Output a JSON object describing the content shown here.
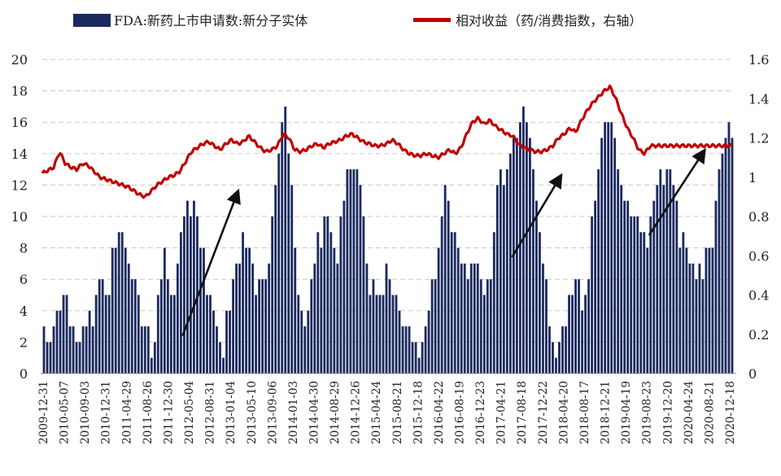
{
  "chart_data": {
    "type": "bar+line",
    "legend": {
      "bar_label": "FDA:新药上市申请数:新分子实体",
      "line_label": "相对收益（药/消费指数，右轴）",
      "placement": "top"
    },
    "y_left": {
      "min": 0,
      "max": 20,
      "ticks": [
        "0",
        "2",
        "4",
        "6",
        "8",
        "10",
        "12",
        "14",
        "16",
        "18",
        "20"
      ]
    },
    "y_right": {
      "min": 0,
      "max": 1.6,
      "ticks": [
        "0",
        "0.2",
        "0.4",
        "0.6",
        "0.8",
        "1",
        "1.2",
        "1.4",
        "1.6"
      ]
    },
    "x_tick_labels": [
      "2009-12-31",
      "2010-05-07",
      "2010-09-03",
      "2010-12-31",
      "2011-04-29",
      "2011-08-26",
      "2011-12-30",
      "2012-05-04",
      "2012-08-31",
      "2013-01-04",
      "2013-05-10",
      "2013-09-06",
      "2014-01-03",
      "2014-04-30",
      "2014-08-29",
      "2014-12-26",
      "2015-04-24",
      "2015-08-21",
      "2015-12-18",
      "2016-04-22",
      "2016-08-19",
      "2016-12-23",
      "2017-04-21",
      "2017-08-18",
      "2017-12-22",
      "2018-04-20",
      "2018-08-17",
      "2018-12-21",
      "2019-04-19",
      "2019-08-23",
      "2019-12-20",
      "2020-04-24",
      "2020-08-21",
      "2020-12-18"
    ],
    "bar_anchors": [
      [
        0,
        2
      ],
      [
        1,
        2
      ],
      [
        2,
        3
      ],
      [
        3,
        5
      ],
      [
        4,
        4
      ],
      [
        5,
        3
      ],
      [
        6,
        2
      ],
      [
        7,
        3
      ],
      [
        8,
        3
      ],
      [
        9,
        5
      ],
      [
        10,
        6
      ],
      [
        11,
        5
      ],
      [
        12,
        7
      ],
      [
        13,
        9
      ],
      [
        14,
        9
      ],
      [
        15,
        7
      ],
      [
        16,
        5
      ],
      [
        17,
        4
      ],
      [
        18,
        3
      ],
      [
        19,
        1
      ],
      [
        20,
        5
      ],
      [
        21,
        8
      ],
      [
        22,
        5
      ],
      [
        23,
        6
      ],
      [
        24,
        9
      ],
      [
        25,
        11
      ],
      [
        26,
        11
      ],
      [
        27,
        9
      ],
      [
        28,
        7
      ],
      [
        29,
        5
      ],
      [
        30,
        3
      ],
      [
        31,
        2
      ],
      [
        32,
        3
      ],
      [
        33,
        6
      ],
      [
        34,
        8
      ],
      [
        35,
        9
      ],
      [
        36,
        7
      ],
      [
        37,
        6
      ],
      [
        38,
        6
      ],
      [
        39,
        6
      ],
      [
        40,
        10
      ],
      [
        41,
        14
      ],
      [
        42,
        17
      ],
      [
        43,
        14
      ],
      [
        44,
        6
      ],
      [
        45,
        4
      ],
      [
        46,
        4
      ],
      [
        47,
        7
      ],
      [
        48,
        8
      ],
      [
        49,
        10
      ],
      [
        50,
        9
      ],
      [
        51,
        7
      ],
      [
        52,
        10
      ],
      [
        53,
        13
      ],
      [
        54,
        14
      ],
      [
        55,
        13
      ],
      [
        56,
        8
      ],
      [
        57,
        6
      ],
      [
        58,
        5
      ],
      [
        59,
        5
      ],
      [
        60,
        6
      ],
      [
        61,
        5
      ],
      [
        62,
        4
      ],
      [
        63,
        3
      ],
      [
        64,
        2
      ],
      [
        65,
        2
      ],
      [
        66,
        2
      ],
      [
        67,
        4
      ],
      [
        68,
        6
      ],
      [
        69,
        9
      ],
      [
        70,
        12
      ],
      [
        71,
        10
      ],
      [
        72,
        8
      ],
      [
        73,
        7
      ],
      [
        74,
        7
      ],
      [
        75,
        7
      ],
      [
        76,
        6
      ],
      [
        77,
        6
      ],
      [
        78,
        6
      ],
      [
        79,
        12
      ],
      [
        80,
        12
      ],
      [
        81,
        13
      ],
      [
        82,
        15
      ],
      [
        83,
        16
      ],
      [
        84,
        16
      ],
      [
        85,
        15
      ],
      [
        86,
        11
      ],
      [
        87,
        7
      ],
      [
        88,
        4
      ],
      [
        89,
        1
      ],
      [
        90,
        2
      ],
      [
        91,
        4
      ],
      [
        92,
        5
      ],
      [
        93,
        6
      ],
      [
        94,
        5
      ],
      [
        95,
        6
      ],
      [
        96,
        11
      ],
      [
        97,
        15
      ],
      [
        98,
        16
      ],
      [
        99,
        16
      ],
      [
        100,
        13
      ],
      [
        101,
        11
      ],
      [
        102,
        11
      ],
      [
        103,
        10
      ],
      [
        104,
        9
      ],
      [
        105,
        9
      ],
      [
        106,
        10
      ],
      [
        107,
        12
      ],
      [
        108,
        13
      ],
      [
        109,
        13
      ],
      [
        110,
        12
      ],
      [
        111,
        9
      ],
      [
        112,
        8
      ],
      [
        113,
        7
      ],
      [
        114,
        7
      ],
      [
        115,
        6
      ],
      [
        116,
        8
      ],
      [
        117,
        10
      ],
      [
        118,
        14
      ],
      [
        119,
        15
      ],
      [
        120,
        15
      ]
    ],
    "line_anchors": [
      [
        0,
        1.02
      ],
      [
        2,
        1.05
      ],
      [
        3,
        1.13
      ],
      [
        4,
        1.07
      ],
      [
        5,
        1.05
      ],
      [
        6,
        1.04
      ],
      [
        7,
        1.07
      ],
      [
        8,
        1.06
      ],
      [
        9,
        1.03
      ],
      [
        10,
        1.0
      ],
      [
        11,
        0.99
      ],
      [
        12,
        0.98
      ],
      [
        13,
        0.97
      ],
      [
        14,
        0.96
      ],
      [
        15,
        0.95
      ],
      [
        16,
        0.93
      ],
      [
        17,
        0.91
      ],
      [
        18,
        0.9
      ],
      [
        19,
        0.93
      ],
      [
        20,
        0.96
      ],
      [
        21,
        0.98
      ],
      [
        22,
        1.0
      ],
      [
        23,
        1.01
      ],
      [
        24,
        1.03
      ],
      [
        25,
        1.08
      ],
      [
        26,
        1.13
      ],
      [
        27,
        1.15
      ],
      [
        28,
        1.17
      ],
      [
        29,
        1.18
      ],
      [
        30,
        1.16
      ],
      [
        31,
        1.14
      ],
      [
        32,
        1.17
      ],
      [
        33,
        1.19
      ],
      [
        34,
        1.17
      ],
      [
        35,
        1.18
      ],
      [
        36,
        1.21
      ],
      [
        37,
        1.18
      ],
      [
        38,
        1.15
      ],
      [
        39,
        1.13
      ],
      [
        40,
        1.14
      ],
      [
        41,
        1.16
      ],
      [
        42,
        1.22
      ],
      [
        43,
        1.2
      ],
      [
        44,
        1.14
      ],
      [
        45,
        1.13
      ],
      [
        46,
        1.14
      ],
      [
        47,
        1.16
      ],
      [
        48,
        1.17
      ],
      [
        49,
        1.15
      ],
      [
        50,
        1.17
      ],
      [
        51,
        1.18
      ],
      [
        52,
        1.19
      ],
      [
        53,
        1.21
      ],
      [
        54,
        1.22
      ],
      [
        55,
        1.2
      ],
      [
        56,
        1.18
      ],
      [
        57,
        1.17
      ],
      [
        58,
        1.16
      ],
      [
        59,
        1.16
      ],
      [
        60,
        1.17
      ],
      [
        61,
        1.19
      ],
      [
        62,
        1.17
      ],
      [
        63,
        1.14
      ],
      [
        64,
        1.12
      ],
      [
        65,
        1.11
      ],
      [
        66,
        1.11
      ],
      [
        67,
        1.12
      ],
      [
        68,
        1.11
      ],
      [
        69,
        1.1
      ],
      [
        70,
        1.12
      ],
      [
        71,
        1.14
      ],
      [
        72,
        1.12
      ],
      [
        73,
        1.15
      ],
      [
        74,
        1.22
      ],
      [
        75,
        1.28
      ],
      [
        76,
        1.3
      ],
      [
        77,
        1.27
      ],
      [
        78,
        1.29
      ],
      [
        79,
        1.26
      ],
      [
        80,
        1.24
      ],
      [
        81,
        1.22
      ],
      [
        82,
        1.21
      ],
      [
        83,
        1.17
      ],
      [
        84,
        1.15
      ],
      [
        85,
        1.14
      ],
      [
        86,
        1.13
      ],
      [
        87,
        1.13
      ],
      [
        88,
        1.14
      ],
      [
        89,
        1.16
      ],
      [
        90,
        1.2
      ],
      [
        91,
        1.22
      ],
      [
        92,
        1.25
      ],
      [
        93,
        1.23
      ],
      [
        94,
        1.29
      ],
      [
        95,
        1.34
      ],
      [
        96,
        1.38
      ],
      [
        97,
        1.41
      ],
      [
        98,
        1.44
      ],
      [
        99,
        1.46
      ],
      [
        100,
        1.4
      ],
      [
        101,
        1.32
      ],
      [
        102,
        1.25
      ],
      [
        103,
        1.2
      ],
      [
        104,
        1.14
      ],
      [
        105,
        1.12
      ],
      [
        106,
        1.16
      ]
    ],
    "x_index_max": 120,
    "arrows": [
      {
        "from": [
          43,
          2.4
        ],
        "to": [
          60,
          11.6
        ]
      },
      {
        "from": [
          144,
          7.4
        ],
        "to": [
          159,
          12.6
        ]
      },
      {
        "from": [
          186,
          8.8
        ],
        "to": [
          203,
          14.2
        ]
      }
    ],
    "colors": {
      "bar": "#1b2a5e",
      "line": "#c00000",
      "grid": "#c8c8c8",
      "arrow": "#111111"
    }
  }
}
